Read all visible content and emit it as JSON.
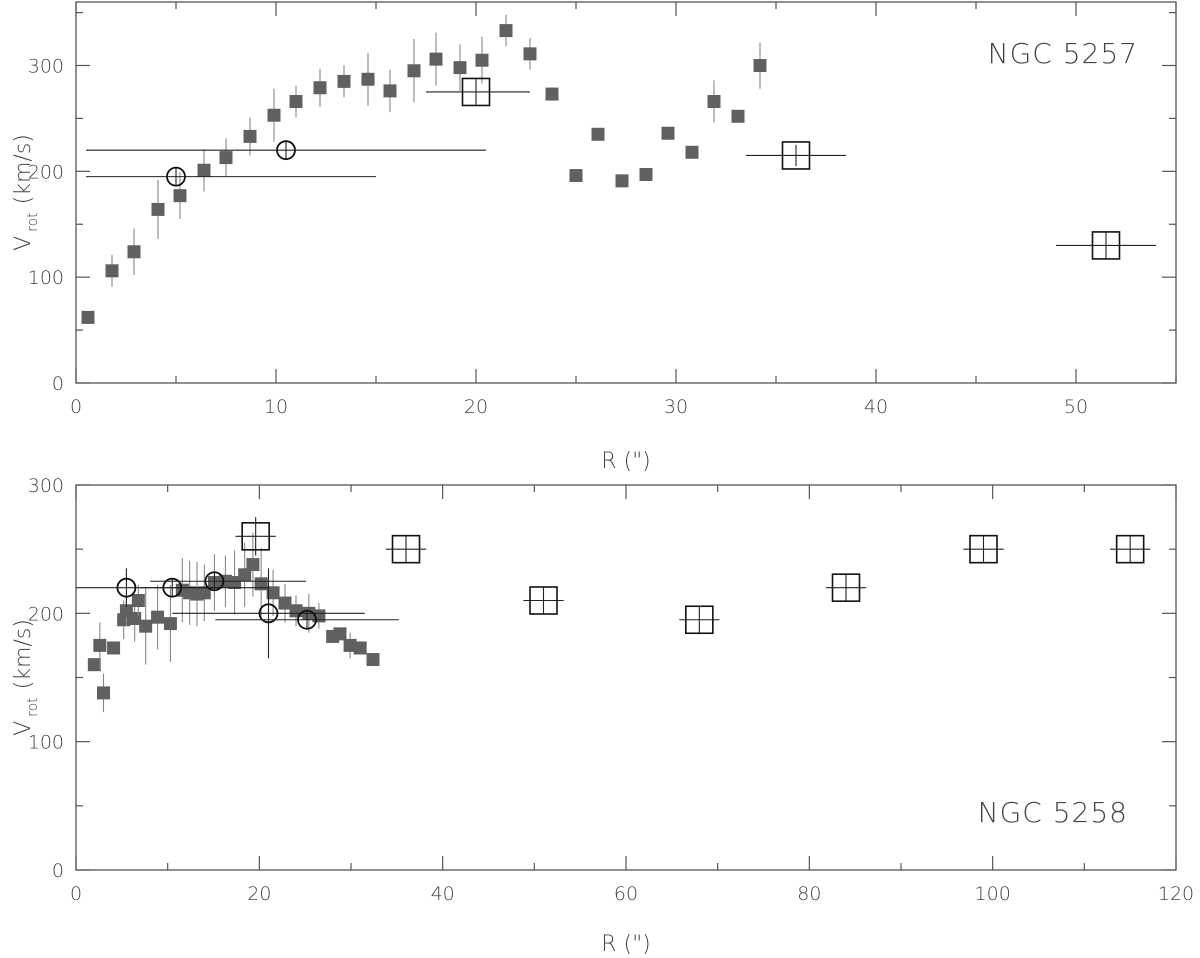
{
  "chart_data": [
    {
      "type": "scatter",
      "title": "NGC 5257",
      "xlabel": "R (\")",
      "ylabel_main": "V",
      "ylabel_sub": "rot",
      "ylabel_unit": "(km/s)",
      "xlim": [
        0,
        55
      ],
      "ylim": [
        0,
        360
      ],
      "xticks": [
        0,
        10,
        20,
        30,
        40,
        50
      ],
      "yticks": [
        0,
        100,
        200,
        300
      ],
      "series": [
        {
          "marker": "filled-square",
          "points": [
            {
              "x": 0.6,
              "y": 62,
              "yerr": 0
            },
            {
              "x": 1.8,
              "y": 106,
              "yerr": 15
            },
            {
              "x": 2.9,
              "y": 124,
              "yerr": 22
            },
            {
              "x": 4.1,
              "y": 164,
              "yerr": 28
            },
            {
              "x": 5.2,
              "y": 177,
              "yerr": 22
            },
            {
              "x": 6.4,
              "y": 201,
              "yerr": 20
            },
            {
              "x": 7.5,
              "y": 213,
              "yerr": 18
            },
            {
              "x": 8.7,
              "y": 233,
              "yerr": 18
            },
            {
              "x": 9.9,
              "y": 253,
              "yerr": 25
            },
            {
              "x": 11.0,
              "y": 266,
              "yerr": 15
            },
            {
              "x": 12.2,
              "y": 279,
              "yerr": 18
            },
            {
              "x": 13.4,
              "y": 285,
              "yerr": 15
            },
            {
              "x": 14.6,
              "y": 287,
              "yerr": 25
            },
            {
              "x": 15.7,
              "y": 276,
              "yerr": 20
            },
            {
              "x": 16.9,
              "y": 295,
              "yerr": 30
            },
            {
              "x": 18.0,
              "y": 306,
              "yerr": 25
            },
            {
              "x": 19.2,
              "y": 298,
              "yerr": 22
            },
            {
              "x": 20.3,
              "y": 305,
              "yerr": 22
            },
            {
              "x": 21.5,
              "y": 333,
              "yerr": 15
            },
            {
              "x": 22.7,
              "y": 311,
              "yerr": 15
            },
            {
              "x": 23.8,
              "y": 273,
              "yerr": 0
            },
            {
              "x": 25.0,
              "y": 196,
              "yerr": 0
            },
            {
              "x": 26.1,
              "y": 235,
              "yerr": 0
            },
            {
              "x": 27.3,
              "y": 191,
              "yerr": 0
            },
            {
              "x": 28.5,
              "y": 197,
              "yerr": 0
            },
            {
              "x": 29.6,
              "y": 236,
              "yerr": 0
            },
            {
              "x": 30.8,
              "y": 218,
              "yerr": 0
            },
            {
              "x": 31.9,
              "y": 266,
              "yerr": 20
            },
            {
              "x": 33.1,
              "y": 252,
              "yerr": 0
            },
            {
              "x": 34.2,
              "y": 300,
              "yerr": 22
            }
          ]
        },
        {
          "marker": "open-circle",
          "points": [
            {
              "x": 5.0,
              "y": 195,
              "xerr_lo": 4.5,
              "xerr_hi": 10.0,
              "yerr": 0
            },
            {
              "x": 10.5,
              "y": 220,
              "xerr_lo": 10.0,
              "xerr_hi": 10.0,
              "yerr": 0
            }
          ]
        },
        {
          "marker": "open-square",
          "points": [
            {
              "x": 20.0,
              "y": 275,
              "xerr_lo": 2.5,
              "xerr_hi": 2.7,
              "yerr": 12
            },
            {
              "x": 36.0,
              "y": 215,
              "xerr_lo": 2.5,
              "xerr_hi": 2.5,
              "yerr": 10
            },
            {
              "x": 51.5,
              "y": 130,
              "xerr_lo": 2.5,
              "xerr_hi": 2.5,
              "yerr": 0
            }
          ]
        }
      ]
    },
    {
      "type": "scatter",
      "title": "NGC 5258",
      "xlabel": "R (\")",
      "ylabel_main": "V",
      "ylabel_sub": "rot",
      "ylabel_unit": "(km/s)",
      "xlim": [
        0,
        120
      ],
      "ylim": [
        0,
        300
      ],
      "xticks": [
        0,
        20,
        40,
        60,
        80,
        100,
        120
      ],
      "yticks": [
        0,
        100,
        200,
        300
      ],
      "series": [
        {
          "marker": "filled-square",
          "points": [
            {
              "x": 2.0,
              "y": 160,
              "yerr": 0
            },
            {
              "x": 2.6,
              "y": 175,
              "yerr": 18
            },
            {
              "x": 3.0,
              "y": 138,
              "yerr": 15
            },
            {
              "x": 4.1,
              "y": 173,
              "yerr": 0
            },
            {
              "x": 5.2,
              "y": 195,
              "yerr": 15
            },
            {
              "x": 5.5,
              "y": 202,
              "yerr": 12
            },
            {
              "x": 6.4,
              "y": 196,
              "yerr": 18
            },
            {
              "x": 6.8,
              "y": 210,
              "yerr": 12
            },
            {
              "x": 7.6,
              "y": 190,
              "yerr": 30
            },
            {
              "x": 8.9,
              "y": 197,
              "yerr": 25
            },
            {
              "x": 10.3,
              "y": 192,
              "yerr": 30
            },
            {
              "x": 11.6,
              "y": 218,
              "yerr": 25
            },
            {
              "x": 12.4,
              "y": 216,
              "yerr": 25
            },
            {
              "x": 13.2,
              "y": 215,
              "yerr": 25
            },
            {
              "x": 14.0,
              "y": 216,
              "yerr": 22
            },
            {
              "x": 15.1,
              "y": 224,
              "yerr": 22
            },
            {
              "x": 16.3,
              "y": 225,
              "yerr": 20
            },
            {
              "x": 17.3,
              "y": 224,
              "yerr": 25
            },
            {
              "x": 18.4,
              "y": 230,
              "yerr": 25
            },
            {
              "x": 19.3,
              "y": 238,
              "yerr": 25
            },
            {
              "x": 20.2,
              "y": 223,
              "yerr": 28
            },
            {
              "x": 21.5,
              "y": 216,
              "yerr": 18
            },
            {
              "x": 22.8,
              "y": 208,
              "yerr": 15
            },
            {
              "x": 24.0,
              "y": 202,
              "yerr": 12
            },
            {
              "x": 25.4,
              "y": 200,
              "yerr": 15
            },
            {
              "x": 26.5,
              "y": 198,
              "yerr": 10
            },
            {
              "x": 28.0,
              "y": 182,
              "yerr": 0
            },
            {
              "x": 28.8,
              "y": 184,
              "yerr": 0
            },
            {
              "x": 29.9,
              "y": 175,
              "yerr": 10
            },
            {
              "x": 31.0,
              "y": 173,
              "yerr": 0
            },
            {
              "x": 32.4,
              "y": 164,
              "yerr": 0
            }
          ]
        },
        {
          "marker": "open-circle",
          "points": [
            {
              "x": 5.5,
              "y": 220,
              "xerr_lo": 5.5,
              "xerr_hi": 10.5,
              "yerr": 15
            },
            {
              "x": 10.5,
              "y": 220,
              "xerr_lo": 3.5,
              "xerr_hi": 10.5,
              "yerr": 0
            },
            {
              "x": 15.1,
              "y": 225,
              "xerr_lo": 7.0,
              "xerr_hi": 10.0,
              "yerr": 0
            },
            {
              "x": 21.0,
              "y": 200,
              "xerr_lo": 10.5,
              "xerr_hi": 10.5,
              "yerr": 35
            },
            {
              "x": 25.2,
              "y": 195,
              "xerr_lo": 10.0,
              "xerr_hi": 10.0,
              "yerr": 0
            }
          ]
        },
        {
          "marker": "open-square",
          "points": [
            {
              "x": 19.6,
              "y": 260,
              "xerr_lo": 2.2,
              "xerr_hi": 2.2,
              "yerr": 15
            },
            {
              "x": 36.0,
              "y": 250,
              "xerr_lo": 2.2,
              "xerr_hi": 2.2,
              "yerr": 0
            },
            {
              "x": 51.0,
              "y": 210,
              "xerr_lo": 2.2,
              "xerr_hi": 2.2,
              "yerr": 0
            },
            {
              "x": 68.0,
              "y": 195,
              "xerr_lo": 2.2,
              "xerr_hi": 2.2,
              "yerr": 0
            },
            {
              "x": 84.0,
              "y": 220,
              "xerr_lo": 2.2,
              "xerr_hi": 2.2,
              "yerr": 0
            },
            {
              "x": 99.0,
              "y": 250,
              "xerr_lo": 2.2,
              "xerr_hi": 2.2,
              "yerr": 0
            },
            {
              "x": 115.0,
              "y": 250,
              "xerr_lo": 2.2,
              "xerr_hi": 2.2,
              "yerr": 0
            }
          ]
        }
      ]
    }
  ]
}
